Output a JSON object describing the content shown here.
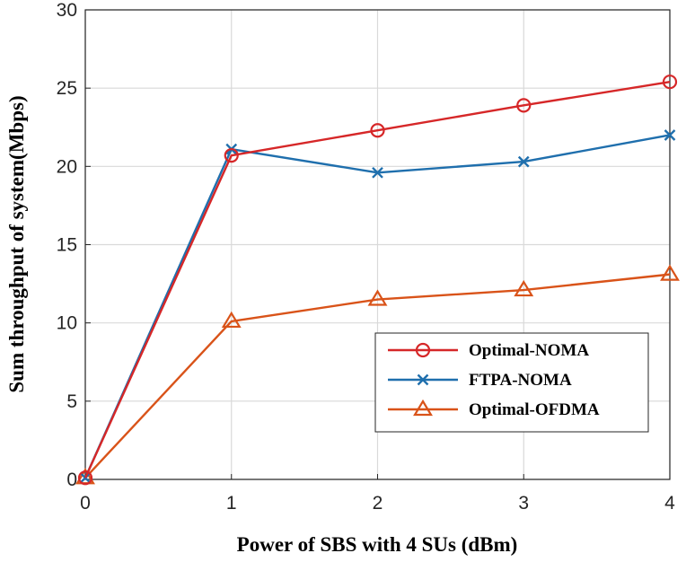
{
  "chart_data": {
    "type": "line",
    "title": "",
    "xlabel": "Power of SBS with 4 SUs (dBm)",
    "ylabel": "Sum throughput of system(Mbps)",
    "x": [
      0,
      1,
      2,
      3,
      4
    ],
    "xlim": [
      0,
      4
    ],
    "ylim": [
      0,
      30
    ],
    "xticks": [
      "0",
      "1",
      "2",
      "3",
      "4"
    ],
    "yticks": [
      "0",
      "5",
      "10",
      "15",
      "20",
      "25",
      "30"
    ],
    "grid": true,
    "legend_position": "lower-right",
    "series": [
      {
        "name": "Optimal-NOMA",
        "values": [
          0.1,
          20.7,
          22.3,
          23.9,
          25.4
        ],
        "color": "#d62728",
        "marker": "circle"
      },
      {
        "name": "FTPA-NOMA",
        "values": [
          0.1,
          21.1,
          19.6,
          20.3,
          22.0
        ],
        "color": "#1f6fad",
        "marker": "x"
      },
      {
        "name": "Optimal-OFDMA",
        "values": [
          0.1,
          10.1,
          11.5,
          12.1,
          13.1
        ],
        "color": "#d95319",
        "marker": "triangle"
      }
    ]
  }
}
